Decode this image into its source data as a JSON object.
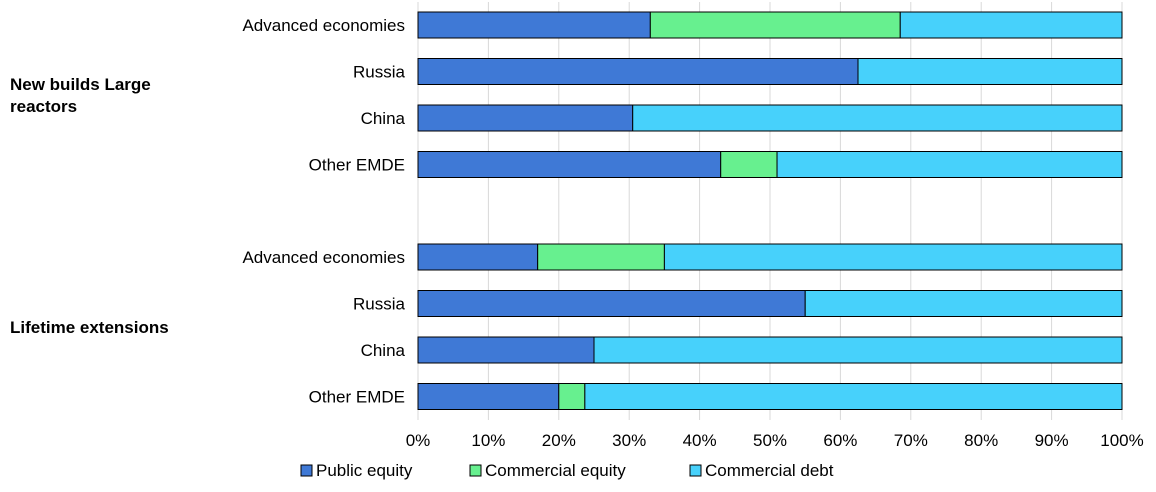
{
  "chart_data": {
    "type": "bar",
    "orientation": "horizontal",
    "stacked": true,
    "normalized": true,
    "title": "",
    "xlabel": "",
    "ylabel": "",
    "xlim": [
      0,
      100
    ],
    "x_ticks": [
      "0%",
      "10%",
      "20%",
      "30%",
      "40%",
      "50%",
      "60%",
      "70%",
      "80%",
      "90%",
      "100%"
    ],
    "grid": "vertical",
    "legend_position": "bottom",
    "groups": [
      {
        "label": "New builds  Large reactors",
        "label_lines": [
          "New builds  Large",
          "reactors"
        ],
        "categories": [
          "Advanced economies",
          "Russia",
          "China",
          "Other EMDE"
        ]
      },
      {
        "label": "Lifetime extensions",
        "label_lines": [
          "Lifetime extensions"
        ],
        "categories": [
          "Advanced economies",
          "Russia",
          "China",
          "Other EMDE"
        ]
      }
    ],
    "series": [
      {
        "name": "Public equity",
        "color": "#3f79d6",
        "values": [
          [
            33,
            62.5,
            30.5,
            43
          ],
          [
            17,
            55,
            25,
            20
          ]
        ]
      },
      {
        "name": "Commercial equity",
        "color": "#67f08f",
        "values": [
          [
            35.5,
            0,
            0,
            8
          ],
          [
            18,
            0,
            0,
            3.7
          ]
        ]
      },
      {
        "name": "Commercial debt",
        "color": "#47d1fb",
        "values": [
          [
            31.5,
            37.5,
            69.5,
            49
          ],
          [
            65,
            45,
            75,
            76.3
          ]
        ]
      }
    ]
  }
}
